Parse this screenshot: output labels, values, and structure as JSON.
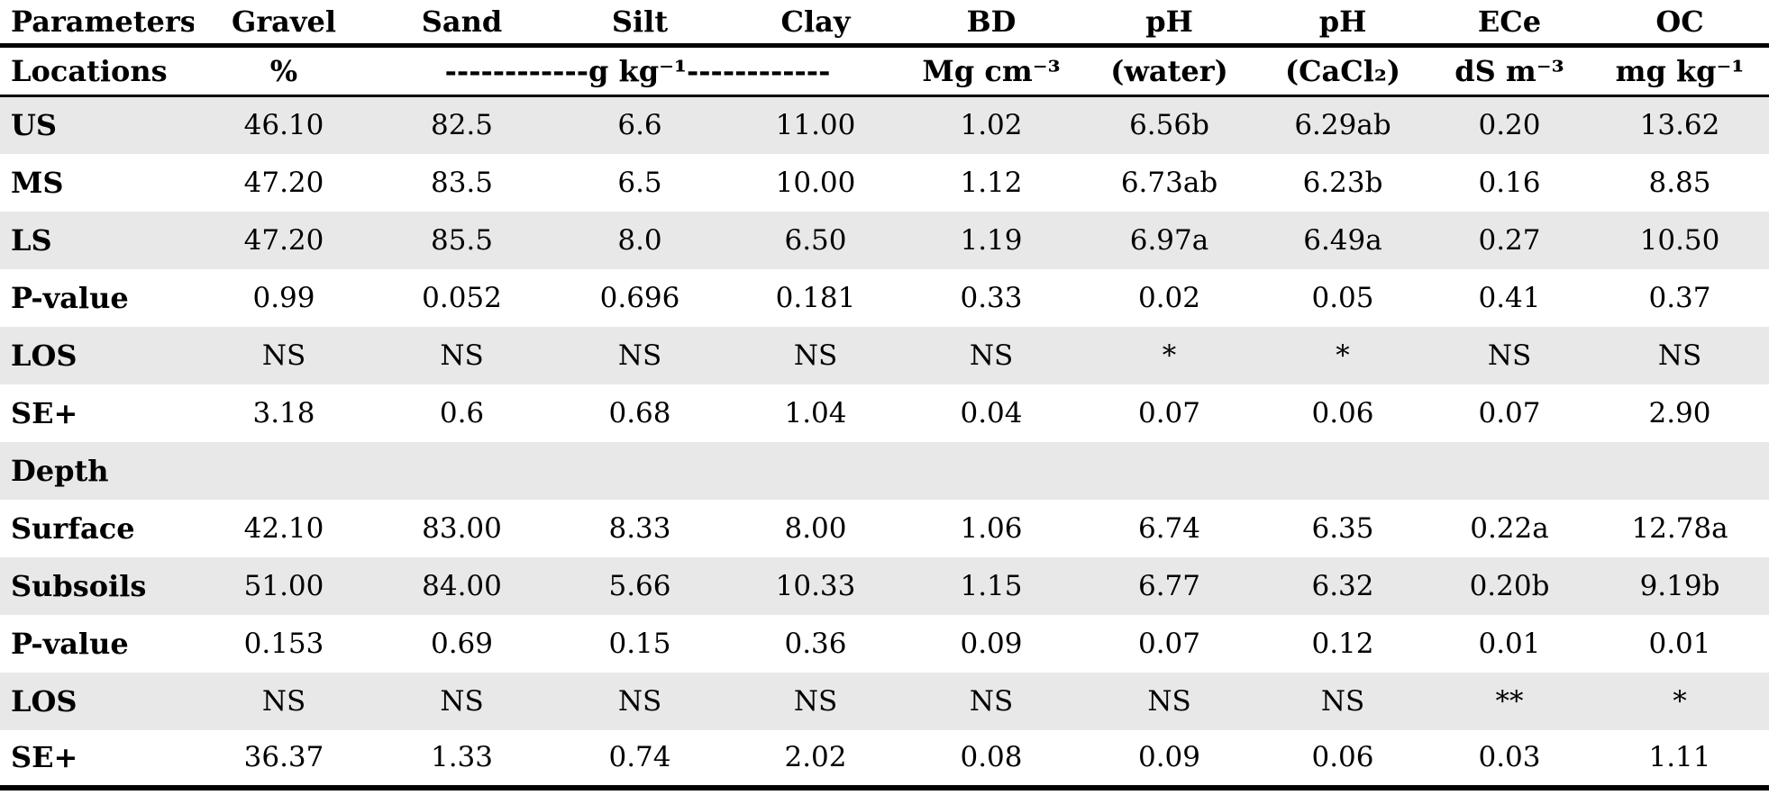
{
  "colors": {
    "stripe": "#e8e8e8",
    "rule": "#000000",
    "background": "#ffffff",
    "text": "#000000"
  },
  "table": {
    "header": [
      "Parameters",
      "Gravel",
      "Sand",
      "Silt",
      "Clay",
      "BD",
      "pH",
      "pH",
      "ECe",
      "OC"
    ],
    "subheader": {
      "label": "Locations",
      "gravel": "%",
      "texture": "------------g kg⁻¹------------",
      "bd": "Mg cm⁻³",
      "ph_water": "(water)",
      "ph_cacl2": "(CaCl₂)",
      "ece": "dS m⁻³",
      "oc": "mg kg⁻¹"
    },
    "rows": [
      {
        "label": "US",
        "shaded": true,
        "section": false,
        "values": [
          "46.10",
          "82.5",
          "6.6",
          "11.00",
          "1.02",
          "6.56b",
          "6.29ab",
          "0.20",
          "13.62"
        ]
      },
      {
        "label": "MS",
        "shaded": false,
        "section": false,
        "values": [
          "47.20",
          "83.5",
          "6.5",
          "10.00",
          "1.12",
          "6.73ab",
          "6.23b",
          "0.16",
          "8.85"
        ]
      },
      {
        "label": "LS",
        "shaded": true,
        "section": false,
        "values": [
          "47.20",
          "85.5",
          "8.0",
          "6.50",
          "1.19",
          "6.97a",
          "6.49a",
          "0.27",
          "10.50"
        ]
      },
      {
        "label": "P-value",
        "shaded": false,
        "section": false,
        "values": [
          "0.99",
          "0.052",
          "0.696",
          "0.181",
          "0.33",
          "0.02",
          "0.05",
          "0.41",
          "0.37"
        ]
      },
      {
        "label": "LOS",
        "shaded": true,
        "section": false,
        "values": [
          "NS",
          "NS",
          "NS",
          "NS",
          "NS",
          "*",
          "*",
          "NS",
          "NS"
        ]
      },
      {
        "label": "SE+",
        "shaded": false,
        "section": false,
        "values": [
          "3.18",
          "0.6",
          "0.68",
          "1.04",
          "0.04",
          "0.07",
          "0.06",
          "0.07",
          "2.90"
        ]
      },
      {
        "label": "Depth",
        "shaded": true,
        "section": true,
        "values": [
          "",
          "",
          "",
          "",
          "",
          "",
          "",
          "",
          ""
        ]
      },
      {
        "label": "Surface",
        "shaded": false,
        "section": false,
        "values": [
          "42.10",
          "83.00",
          "8.33",
          "8.00",
          "1.06",
          "6.74",
          "6.35",
          "0.22a",
          "12.78a"
        ]
      },
      {
        "label": "Subsoils",
        "shaded": true,
        "section": false,
        "values": [
          "51.00",
          "84.00",
          "5.66",
          "10.33",
          "1.15",
          "6.77",
          "6.32",
          "0.20b",
          "9.19b"
        ]
      },
      {
        "label": "P-value",
        "shaded": false,
        "section": false,
        "values": [
          "0.153",
          "0.69",
          "0.15",
          "0.36",
          "0.09",
          "0.07",
          "0.12",
          "0.01",
          "0.01"
        ]
      },
      {
        "label": "LOS",
        "shaded": true,
        "section": false,
        "values": [
          "NS",
          "NS",
          "NS",
          "NS",
          "NS",
          "NS",
          "NS",
          "**",
          "*"
        ]
      },
      {
        "label": "SE+",
        "shaded": false,
        "section": false,
        "values": [
          "36.37",
          "1.33",
          "0.74",
          "2.02",
          "0.08",
          "0.09",
          "0.06",
          "0.03",
          "1.11"
        ]
      }
    ]
  }
}
